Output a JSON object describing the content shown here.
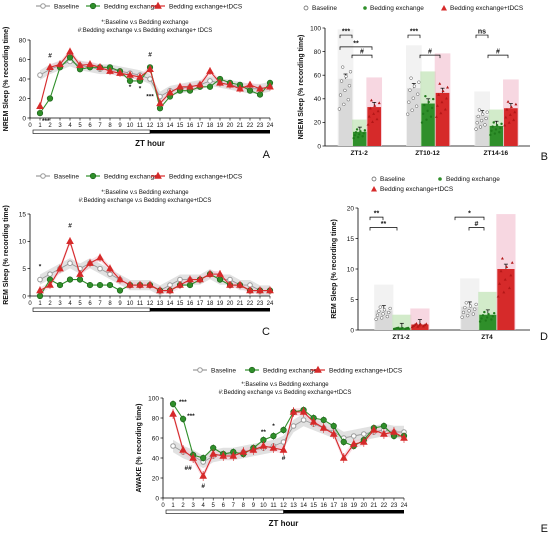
{
  "colors": {
    "baseline": "#9a9a9a",
    "baseline_band": "#c8c8c8",
    "exchange": "#2f8f2a",
    "tdcs": "#d62a2a",
    "tdcs_band": "#f4c6d4",
    "exchange_band": "#bfe3b3"
  },
  "chart_data": [
    {
      "panel": "A",
      "type": "line",
      "legend": [
        "Baseline",
        "Bedding exchange",
        "Bedding exchange+tDCS"
      ],
      "note1": "*:Baseline v.s Bedding exchange",
      "note2": "#:Bedding exchange v.s Bedding exchange+ tDCS",
      "xlabel": "ZT hour",
      "ylabel": "NREM Sleep (% recording time)",
      "ylim": [
        0,
        80
      ],
      "yticks": [
        0,
        20,
        40,
        60,
        80
      ],
      "x": [
        1,
        2,
        3,
        4,
        5,
        6,
        7,
        8,
        9,
        10,
        11,
        12,
        13,
        14,
        15,
        16,
        17,
        18,
        19,
        20,
        21,
        22,
        23,
        24
      ],
      "series": [
        {
          "name": "Baseline",
          "values": [
            44,
            50,
            54,
            58,
            54,
            52,
            50,
            50,
            48,
            46,
            44,
            40,
            22,
            28,
            30,
            32,
            34,
            38,
            36,
            34,
            32,
            30,
            30,
            32
          ]
        },
        {
          "name": "Bedding exchange",
          "values": [
            5,
            20,
            52,
            62,
            50,
            52,
            52,
            52,
            48,
            38,
            38,
            52,
            10,
            22,
            28,
            28,
            32,
            32,
            40,
            36,
            34,
            28,
            24,
            36
          ]
        },
        {
          "name": "Bedding exchange+tDCS",
          "values": [
            12,
            52,
            55,
            68,
            54,
            55,
            52,
            48,
            46,
            44,
            42,
            50,
            15,
            26,
            32,
            32,
            34,
            48,
            36,
            34,
            30,
            34,
            30,
            32
          ]
        }
      ],
      "annotations": [
        "#",
        "***",
        "#",
        "*",
        "*",
        "***"
      ]
    },
    {
      "panel": "B",
      "type": "bar",
      "legend": [
        "Baseline",
        "Bedding exchange",
        "Bedding exchange+tDCS"
      ],
      "ylabel": "NREM Sleep (% recording time)",
      "ylim": [
        0,
        100
      ],
      "yticks": [
        0,
        20,
        40,
        60,
        80,
        100
      ],
      "categories": [
        "ZT1-2",
        "ZT10-12",
        "ZT14-16"
      ],
      "series": [
        {
          "name": "Baseline",
          "values": [
            57,
            49,
            26
          ]
        },
        {
          "name": "Bedding exchange",
          "values": [
            12,
            36,
            17
          ]
        },
        {
          "name": "Bedding exchange+tDCS",
          "values": [
            33,
            45,
            32
          ]
        }
      ],
      "annotations": [
        "***",
        "**",
        "#",
        "***",
        "#",
        "ns",
        "#"
      ]
    },
    {
      "panel": "C",
      "type": "line",
      "legend": [
        "Baseline",
        "Bedding exchange",
        "Bedding exchange+tDCS"
      ],
      "note1": "*:Baseline v.s Bedding exchange",
      "note2": "#:Bedding exchange v.s Bedding exchange+tDCS",
      "xlabel": "",
      "ylabel": "REM Sleep (% recording time)",
      "ylim": [
        0,
        15
      ],
      "yticks": [
        0,
        5,
        10,
        15
      ],
      "x": [
        1,
        2,
        3,
        4,
        5,
        6,
        7,
        8,
        9,
        10,
        11,
        12,
        13,
        14,
        15,
        16,
        17,
        18,
        19,
        20,
        21,
        22,
        23,
        24
      ],
      "series": [
        {
          "name": "Baseline",
          "values": [
            3,
            4,
            5,
            6,
            5,
            6,
            5,
            4,
            3,
            2,
            2,
            2,
            1,
            2,
            3,
            3,
            3,
            4,
            3,
            3,
            2,
            2,
            1,
            1
          ]
        },
        {
          "name": "Bedding exchange",
          "values": [
            0,
            3,
            2,
            3,
            3,
            2,
            2,
            2,
            1,
            2,
            2,
            2,
            1,
            1,
            2,
            2,
            3,
            4,
            3,
            2,
            2,
            1,
            1,
            1
          ]
        },
        {
          "name": "Bedding exchange+tDCS",
          "values": [
            1,
            2,
            5,
            10,
            4,
            6,
            7,
            5,
            3,
            2,
            2,
            2,
            1,
            1,
            2,
            3,
            3,
            4,
            4,
            2,
            2,
            1,
            1,
            1
          ]
        }
      ],
      "annotations": [
        "*",
        "#"
      ]
    },
    {
      "panel": "D",
      "type": "bar",
      "legend": [
        "Baseline",
        "Bedding exchange",
        "Bedding exchange+tDCS"
      ],
      "ylabel": "REM Sleep (% recording time)",
      "ylim": [
        0,
        20
      ],
      "yticks": [
        0,
        5,
        10,
        15,
        20
      ],
      "categories": [
        "ZT1-2",
        "ZT4"
      ],
      "series": [
        {
          "name": "Baseline",
          "values": [
            3.2,
            3.8
          ]
        },
        {
          "name": "Bedding exchange",
          "values": [
            0.3,
            2.5
          ]
        },
        {
          "name": "Bedding exchange+tDCS",
          "values": [
            0.9,
            10.0
          ]
        }
      ],
      "annotations": [
        "**",
        "**",
        "*",
        "#"
      ]
    },
    {
      "panel": "E",
      "type": "line",
      "legend": [
        "Baseline",
        "Bedding exchange",
        "Bedding exchange+tDCS"
      ],
      "note1": "*:Baseline v.s Bedding exchange",
      "note2": "#:Bedding exchange v.s Bedding exchange+tDCS",
      "xlabel": "ZT hour",
      "ylabel": "AWAKE (% recording time)",
      "ylim": [
        0,
        100
      ],
      "yticks": [
        0,
        20,
        40,
        60,
        80,
        100
      ],
      "x": [
        0,
        1,
        2,
        3,
        4,
        5,
        6,
        7,
        8,
        9,
        10,
        11,
        12,
        13,
        14,
        15,
        16,
        17,
        18,
        19,
        20,
        21,
        22,
        23,
        24
      ],
      "series": [
        {
          "name": "Baseline",
          "values": [
            null,
            52,
            46,
            42,
            36,
            42,
            44,
            44,
            46,
            48,
            50,
            52,
            56,
            72,
            78,
            74,
            70,
            66,
            60,
            62,
            64,
            66,
            68,
            66,
            66
          ]
        },
        {
          "name": "Bedding exchange",
          "values": [
            null,
            94,
            79,
            43,
            40,
            50,
            44,
            46,
            44,
            50,
            58,
            62,
            68,
            86,
            88,
            80,
            78,
            72,
            56,
            52,
            58,
            70,
            72,
            62,
            62
          ]
        },
        {
          "name": "Bedding exchange+tDCS",
          "values": [
            null,
            84,
            48,
            40,
            22,
            44,
            42,
            42,
            46,
            48,
            52,
            50,
            48,
            86,
            86,
            76,
            70,
            64,
            40,
            54,
            56,
            68,
            64,
            66,
            60
          ]
        }
      ],
      "annotations": [
        "***",
        "***",
        "##",
        "#",
        "**",
        "*",
        "#"
      ]
    }
  ],
  "panel_labels": [
    "A",
    "B",
    "C",
    "D",
    "E"
  ]
}
